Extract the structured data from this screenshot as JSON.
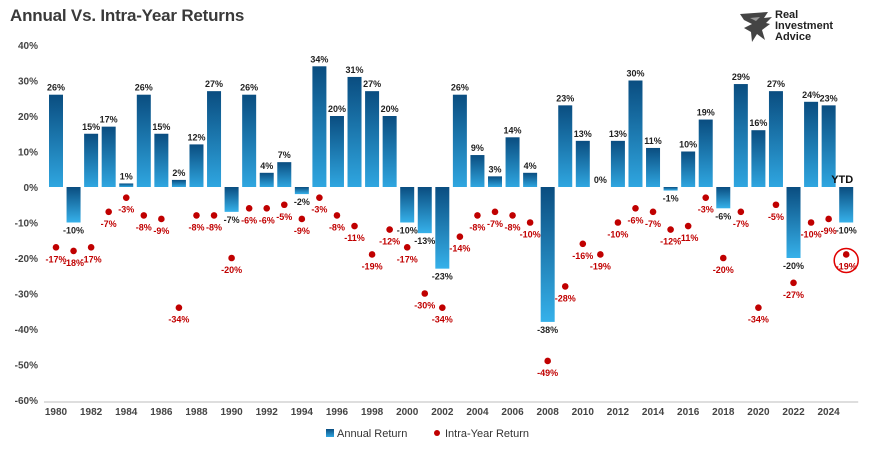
{
  "header": {
    "title": "Annual Vs. Intra-Year Returns",
    "brand_line1": "Real",
    "brand_line2": "Investment",
    "brand_line3": "Advice"
  },
  "chart_data": {
    "type": "bar",
    "title": "Annual Vs. Intra-Year Returns",
    "xlabel": "",
    "ylabel": "",
    "ylim": [
      -60,
      40
    ],
    "yticks": [
      "40%",
      "30%",
      "20%",
      "10%",
      "0%",
      "-10%",
      "-20%",
      "-30%",
      "-40%",
      "-50%",
      "-60%"
    ],
    "ytick_values": [
      40,
      30,
      20,
      10,
      0,
      -10,
      -20,
      -30,
      -40,
      -50,
      -60
    ],
    "x": [
      1980,
      1981,
      1982,
      1983,
      1984,
      1985,
      1986,
      1987,
      1988,
      1989,
      1990,
      1991,
      1992,
      1993,
      1994,
      1995,
      1996,
      1997,
      1998,
      1999,
      2000,
      2001,
      2002,
      2003,
      2004,
      2005,
      2006,
      2007,
      2008,
      2009,
      2010,
      2011,
      2012,
      2013,
      2014,
      2015,
      2016,
      2017,
      2018,
      2019,
      2020,
      2021,
      2022,
      2023,
      2024,
      2025
    ],
    "xtick_labels": [
      "1980",
      "1982",
      "1984",
      "1986",
      "1988",
      "1990",
      "1992",
      "1994",
      "1996",
      "1998",
      "2000",
      "2002",
      "2004",
      "2006",
      "2008",
      "2010",
      "2012",
      "2014",
      "2016",
      "2018",
      "2020",
      "2022",
      "2024"
    ],
    "grid": false,
    "legend_position": "bottom",
    "series": [
      {
        "name": "Annual Return",
        "type": "bar",
        "color": "#1f7fc0",
        "values": [
          26,
          -10,
          15,
          17,
          1,
          26,
          15,
          2,
          12,
          27,
          -7,
          26,
          4,
          7,
          -2,
          34,
          20,
          31,
          27,
          20,
          -10,
          -13,
          -23,
          26,
          9,
          3,
          14,
          4,
          -38,
          23,
          13,
          0,
          13,
          30,
          11,
          -1,
          10,
          19,
          -6,
          29,
          16,
          27,
          -20,
          24,
          23,
          -10
        ],
        "labels": [
          "26%",
          "-10%",
          "15%",
          "17%",
          "1%",
          "26%",
          "15%",
          "2%",
          "12%",
          "27%",
          "-7%",
          "26%",
          "4%",
          "7%",
          "-2%",
          "34%",
          "20%",
          "31%",
          "27%",
          "20%",
          "-10%",
          "-13%",
          "-23%",
          "26%",
          "9%",
          "3%",
          "14%",
          "4%",
          "-38%",
          "23%",
          "13%",
          "0%",
          "13%",
          "30%",
          "11%",
          "-1%",
          "10%",
          "19%",
          "-6%",
          "29%",
          "16%",
          "27%",
          "-20%",
          "24%",
          "23%",
          "-10%"
        ]
      },
      {
        "name": "Intra-Year Return",
        "type": "scatter",
        "color": "#c00000",
        "values": [
          -17,
          -18,
          -17,
          -7,
          -3,
          -8,
          -9,
          -34,
          -8,
          -8,
          -20,
          -6,
          -6,
          -5,
          -9,
          -3,
          -8,
          -11,
          -19,
          -12,
          -17,
          -30,
          -34,
          -14,
          -8,
          -7,
          -8,
          -10,
          -49,
          -28,
          -16,
          -19,
          -10,
          -6,
          -7,
          -12,
          -11,
          -3,
          -20,
          -7,
          -34,
          -5,
          -27,
          -10,
          -9,
          -19
        ],
        "labels": [
          "-17%",
          "-18%",
          "-17%",
          "-7%",
          "-3%",
          "-8%",
          "-9%",
          "-34%",
          "-8%",
          "-8%",
          "-20%",
          "-6%",
          "-6%",
          "-5%",
          "-9%",
          "-3%",
          "-8%",
          "-11%",
          "-19%",
          "-12%",
          "-17%",
          "-30%",
          "-34%",
          "-14%",
          "-8%",
          "-7%",
          "-8%",
          "-10%",
          "-49%",
          "-28%",
          "-16%",
          "-19%",
          "-10%",
          "-6%",
          "-7%",
          "-12%",
          "-11%",
          "-3%",
          "-20%",
          "-7%",
          "-34%",
          "-5%",
          "-27%",
          "-10%",
          "-9%",
          "-19%"
        ]
      }
    ],
    "annotations": {
      "ytd_label": "YTD",
      "highlight_year": 2025
    }
  }
}
